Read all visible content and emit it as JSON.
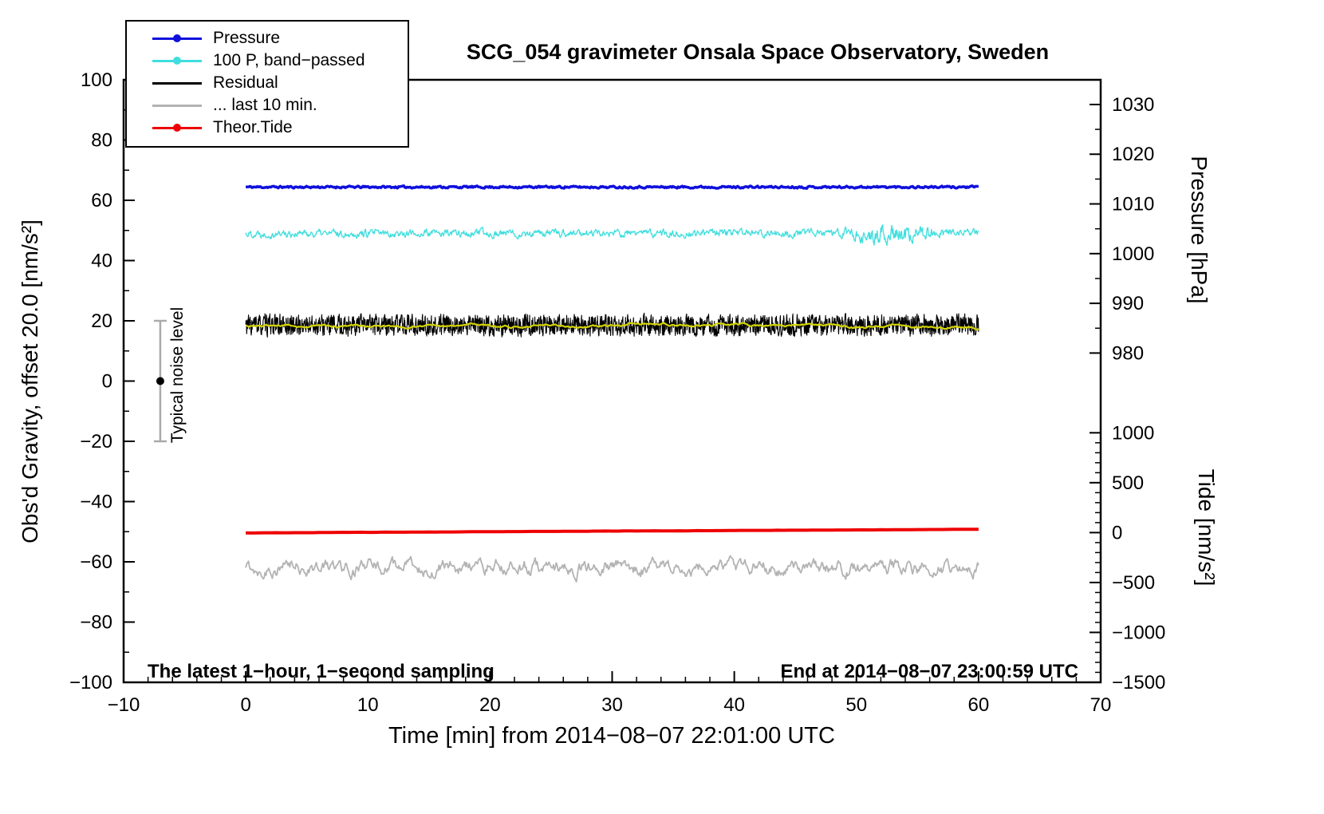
{
  "title": "SCG_054 gravimeter Onsala Space Observatory, Sweden",
  "xlabel": "Time [min] from 2014−08−07 22:01:00 UTC",
  "ylabel_left": "Obs'd Gravity, offset 20.0 [nm/s²]",
  "ylabel_pressure": "Pressure [hPa]",
  "ylabel_tide": "Tide [nm/s²]",
  "annotations": {
    "noise_label": "Typical noise level",
    "sampling_note": "The latest 1−hour, 1−second sampling",
    "end_note": "End at 2014−08−07 23:00:59 UTC"
  },
  "legend": [
    {
      "label": "Pressure",
      "color": "#1010dd",
      "marker": true
    },
    {
      "label": "100 P, band−passed",
      "color": "#3fdede",
      "marker": true
    },
    {
      "label": "Residual",
      "color": "#000000",
      "marker": false
    },
    {
      "label": "... last 10 min.",
      "color": "#b3b3b3",
      "marker": false
    },
    {
      "label": "Theor.Tide",
      "color": "#ee0000",
      "marker": true
    }
  ],
  "chart_data": {
    "type": "line",
    "title": "SCG_054 gravimeter Onsala Space Observatory, Sweden",
    "xlabel": "Time [min] from 2014−08−07 22:01:00 UTC",
    "ylabel": "Obs'd Gravity, offset 20.0 [nm/s²]",
    "xlim": [
      -10,
      70
    ],
    "ylim_left": [
      -100,
      100
    ],
    "x_ticks": [
      -10,
      0,
      10,
      20,
      30,
      40,
      50,
      60,
      70
    ],
    "x_minor_step": 2,
    "y_ticks_left": [
      -100,
      -80,
      -60,
      -40,
      -20,
      0,
      20,
      40,
      60,
      80,
      100
    ],
    "y_minor_step": 10,
    "pressure_axis": {
      "label": "Pressure [hPa]",
      "ticks": [
        1030,
        1020,
        1010,
        1000,
        990,
        980
      ],
      "minor_step": 5,
      "anchor_value": 980,
      "anchor_left_units": 9.3,
      "left_units_per_hpa": 1.65
    },
    "tide_axis": {
      "label": "Tide [nm/s²]",
      "ticks": [
        1000,
        500,
        0,
        -500,
        -1000,
        -1500
      ],
      "minor_step": 100,
      "anchor_value": 0,
      "anchor_left_units": -50.3,
      "left_units_per_unit": 0.03313
    },
    "noise_bar": {
      "x": -7,
      "y_center": 0,
      "half_height": 20,
      "bar_color": "#aaaaaa",
      "dot_color": "#000000"
    },
    "series": [
      {
        "name": "Pressure",
        "color": "#1010dd",
        "width": 3.5,
        "x_start": 0,
        "x_end": 60,
        "points": 700,
        "base": 64.4,
        "trend": 0,
        "noise": 0.3,
        "rho": 0.4,
        "seed": 11,
        "mean_right_axis_hpa": 1013
      },
      {
        "name": "100 P, band−passed",
        "color": "#3fdede",
        "width": 1.3,
        "x_start": 0,
        "x_end": 60,
        "points": 1200,
        "base": 49.0,
        "trend": 0,
        "noise": 1.0,
        "rho": 0.6,
        "seed": 22,
        "burst": {
          "center": 53,
          "width": 2.2,
          "gain": 1.5
        }
      },
      {
        "name": "Residual",
        "color": "#000000",
        "width": 1.1,
        "x_start": 0,
        "x_end": 60,
        "points": 2400,
        "base": 18.5,
        "trend": 0,
        "noise": 3.2,
        "rho": 0.25,
        "seed": 33
      },
      {
        "name": "Residual smoothed",
        "color": "#d4d400",
        "width": 2.2,
        "x_start": 0,
        "x_end": 60,
        "points": 500,
        "base": 18.3,
        "trend": 0,
        "noise": 0.3,
        "rho": 0.95,
        "seed": 44
      },
      {
        "name": "Theor.Tide",
        "color": "#ee0000",
        "width": 4,
        "x_start": 0,
        "x_end": 60,
        "points": 120,
        "base": -50.4,
        "trend": 0.02,
        "noise": 0.03,
        "rho": 0.2,
        "seed": 66,
        "mean_right_axis_tide": 0
      },
      {
        "name": "... last 10 min.",
        "color": "#b3b3b3",
        "width": 1.8,
        "x_start": 0,
        "x_end": 60,
        "points": 800,
        "base": -61.8,
        "trend": 0,
        "noise": 1.6,
        "rho": 0.8,
        "seed": 55
      }
    ]
  }
}
